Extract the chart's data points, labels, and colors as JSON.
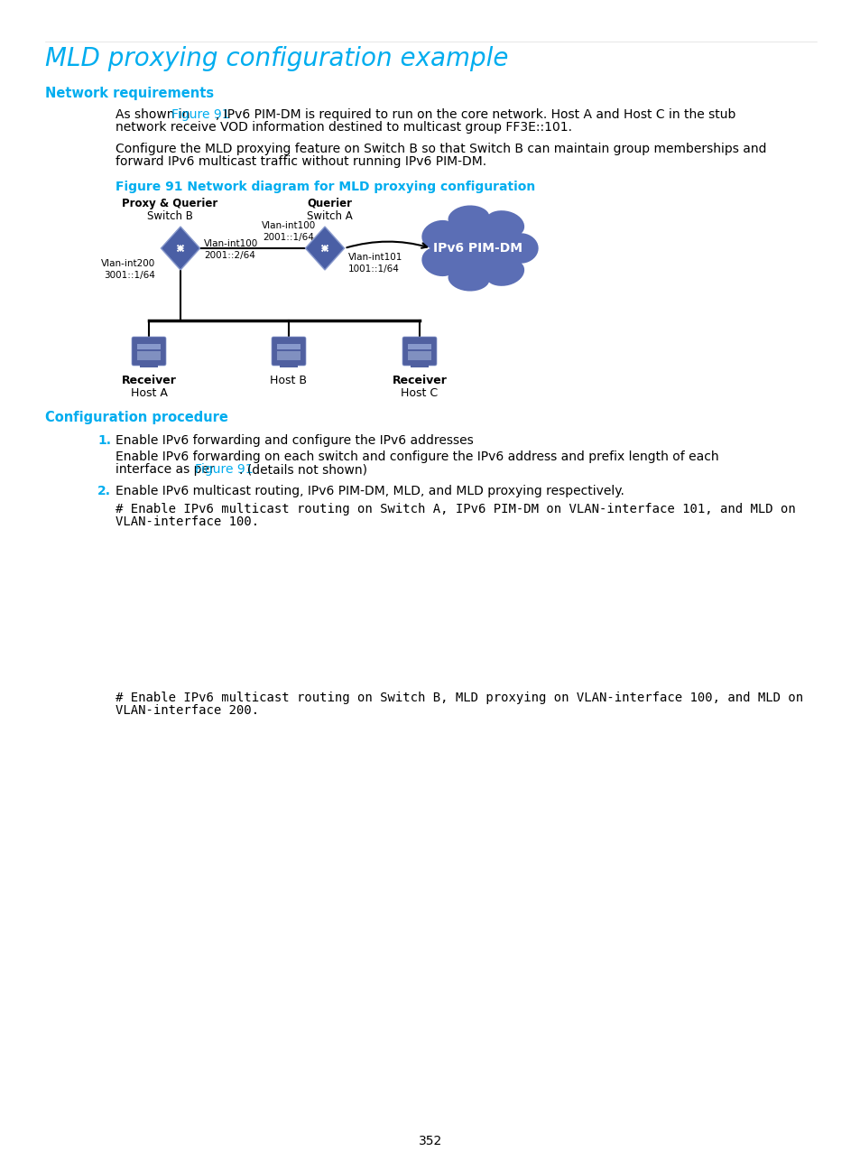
{
  "title": "MLD proxying configuration example",
  "title_color": "#00ADEF",
  "title_fontsize": 20,
  "section1_heading": "Network requirements",
  "section_color": "#00ADEF",
  "section_fontsize": 10.5,
  "fig_caption": "Figure 91 Network diagram for MLD proxying configuration",
  "fig_caption_color": "#00ADEF",
  "section2_heading": "Configuration procedure",
  "page_num": "352",
  "body_fontsize": 10,
  "link_color": "#00ADEF",
  "body_color": "#000000",
  "bg_color": "#FFFFFF",
  "switch_color": "#4A5FA5",
  "pim_cloud_color": "#5B6EB5",
  "host_color": "#5060A0"
}
